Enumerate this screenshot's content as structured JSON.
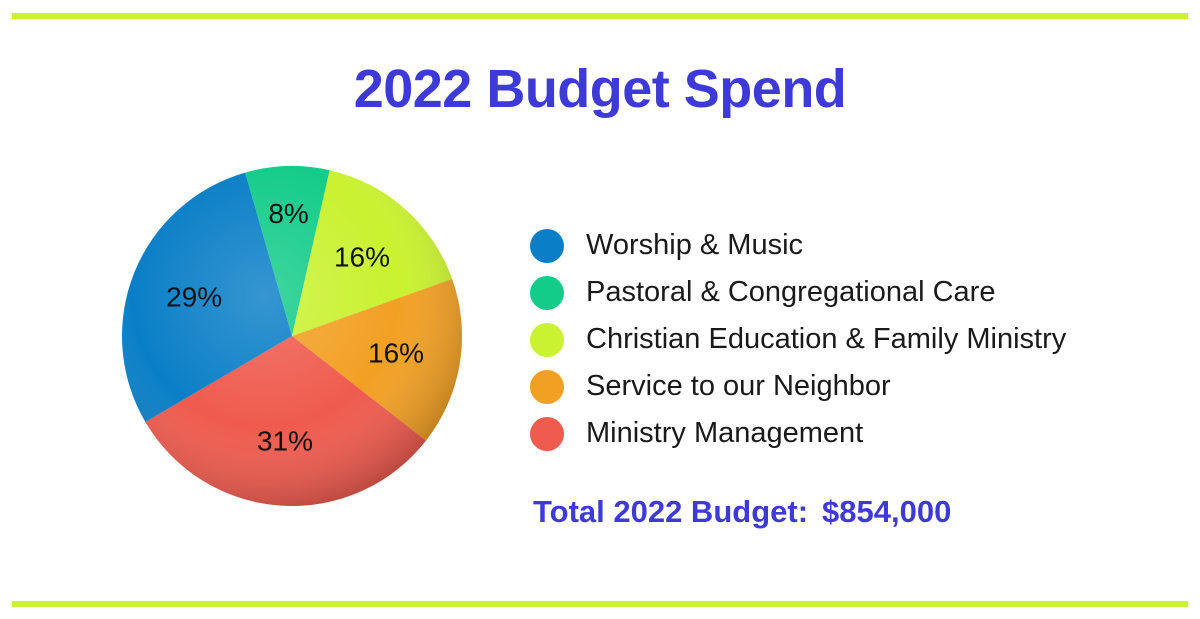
{
  "chart_data": {
    "type": "pie",
    "title": "2022 Budget Spend",
    "slices": [
      {
        "label": "Worship & Music",
        "value": 29,
        "value_label": "29%",
        "color": "#0a7fc7"
      },
      {
        "label": "Pastoral & Congregational Care",
        "value": 8,
        "value_label": "8%",
        "color": "#14cc8a"
      },
      {
        "label": "Christian Education & Family Ministry",
        "value": 16,
        "value_label": "16%",
        "color": "#c9f230"
      },
      {
        "label": "Service to our Neighbor",
        "value": 16,
        "value_label": "16%",
        "color": "#f2a024"
      },
      {
        "label": "Ministry Management",
        "value": 31,
        "value_label": "31%",
        "color": "#ef5b4e"
      }
    ],
    "legend_position": "right"
  },
  "total": {
    "label": "Total 2022 Budget:",
    "amount": "$854,000"
  },
  "colors": {
    "accent": "#3d3ad8",
    "rule": "#c9f230"
  }
}
